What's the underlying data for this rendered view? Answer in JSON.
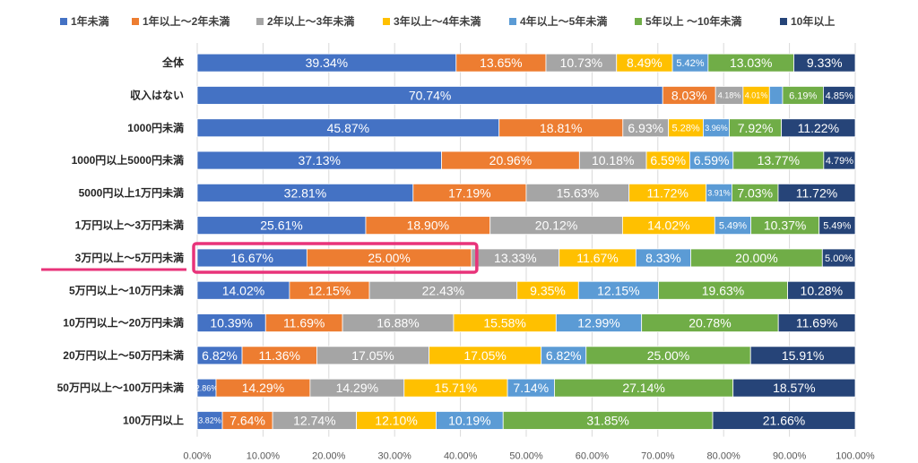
{
  "chart_data": {
    "type": "bar",
    "orientation": "horizontal",
    "stacked": true,
    "categories": [
      "全体",
      "収入はない",
      "1000円未満",
      "1000円以上5000円未満",
      "5000円以上1万円未満",
      "1万円以上～3万円未満",
      "3万円以上～5万円未満",
      "5万円以上～10万円未満",
      "10万円以上～20万円未満",
      "20万円以上～50万円未満",
      "50万円以上～100万円未満",
      "100万円以上"
    ],
    "series": [
      {
        "name": "1年未満",
        "color": "#4472C4",
        "values": [
          39.34,
          70.74,
          45.87,
          37.13,
          32.81,
          25.61,
          16.67,
          14.02,
          10.39,
          6.82,
          2.86,
          3.82
        ],
        "labels": [
          "39.34%",
          "70.74%",
          "45.87%",
          "37.13%",
          "32.81%",
          "25.61%",
          "16.67%",
          "14.02%",
          "10.39%",
          "6.82%",
          "2.86%",
          "3.82%"
        ]
      },
      {
        "name": "1年以上～2年未満",
        "color": "#ED7D31",
        "values": [
          13.65,
          8.03,
          18.81,
          20.96,
          17.19,
          18.9,
          25.0,
          12.15,
          11.69,
          11.36,
          14.29,
          7.64
        ],
        "labels": [
          "13.65%",
          "8.03%",
          "18.81%",
          "20.96%",
          "17.19%",
          "18.90%",
          "25.00%",
          "12.15%",
          "11.69%",
          "11.36%",
          "14.29%",
          "7.64%"
        ]
      },
      {
        "name": "2年以上～3年未満",
        "color": "#A5A5A5",
        "values": [
          10.73,
          4.18,
          6.93,
          10.18,
          15.63,
          20.12,
          13.33,
          22.43,
          16.88,
          17.05,
          14.29,
          12.74
        ],
        "labels": [
          "10.73%",
          "4.18%",
          "6.93%",
          "10.18%",
          "15.63%",
          "20.12%",
          "13.33%",
          "22.43%",
          "16.88%",
          "17.05%",
          "14.29%",
          "12.74%"
        ]
      },
      {
        "name": "3年以上～4年未満",
        "color": "#FFC000",
        "values": [
          8.49,
          4.01,
          5.28,
          6.59,
          11.72,
          14.02,
          11.67,
          9.35,
          15.58,
          17.05,
          15.71,
          12.1
        ],
        "labels": [
          "8.49%",
          "4.01%",
          "5.28%",
          "6.59%",
          "11.72%",
          "14.02%",
          "11.67%",
          "9.35%",
          "15.58%",
          "17.05%",
          "15.71%",
          "12.10%"
        ]
      },
      {
        "name": "4年以上～5年未満",
        "color": "#5B9BD5",
        "values": [
          5.42,
          2.0,
          3.96,
          6.59,
          3.91,
          5.49,
          8.33,
          12.15,
          12.99,
          6.82,
          7.14,
          10.19
        ],
        "labels": [
          "5.42%",
          "",
          "3.96%",
          "6.59%",
          "3.91%",
          "5.49%",
          "8.33%",
          "12.15%",
          "12.99%",
          "6.82%",
          "7.14%",
          "10.19%"
        ]
      },
      {
        "name": "5年以上 ～10年未満",
        "color": "#70AD47",
        "values": [
          13.03,
          6.19,
          7.92,
          13.77,
          7.03,
          10.37,
          20.0,
          19.63,
          20.78,
          25.0,
          27.14,
          31.85
        ],
        "labels": [
          "13.03%",
          "6.19%",
          "7.92%",
          "13.77%",
          "7.03%",
          "10.37%",
          "20.00%",
          "19.63%",
          "20.78%",
          "25.00%",
          "27.14%",
          "31.85%"
        ]
      },
      {
        "name": "10年以上",
        "color": "#264478",
        "values": [
          9.33,
          4.85,
          11.22,
          4.79,
          11.72,
          5.49,
          5.0,
          10.28,
          11.69,
          15.91,
          18.57,
          21.66
        ],
        "labels": [
          "9.33%",
          "4.85%",
          "11.22%",
          "4.79%",
          "11.72%",
          "5.49%",
          "5.00%",
          "10.28%",
          "11.69%",
          "15.91%",
          "18.57%",
          "21.66%"
        ]
      }
    ],
    "xlim": [
      0,
      100
    ],
    "x_ticks": [
      "0.00%",
      "10.00%",
      "20.00%",
      "30.00%",
      "40.00%",
      "50.00%",
      "60.00%",
      "70.00%",
      "80.00%",
      "90.00%",
      "100.00%"
    ],
    "legend_position": "top",
    "highlighted_category": "3万円以上～5万円未満",
    "highlight_color": "#E8337A",
    "grid": true
  }
}
